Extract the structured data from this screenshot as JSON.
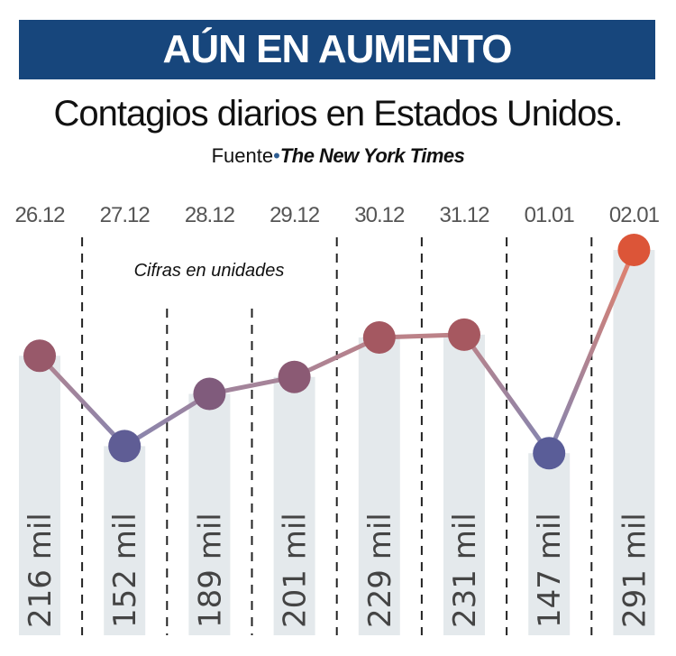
{
  "header": {
    "title": "AÚN EN AUMENTO"
  },
  "subtitle": "Contagios diarios en Estados Unidos.",
  "source": {
    "label": "Fuente",
    "separator": "•",
    "name": "The New York Times"
  },
  "chart_data": {
    "type": "line",
    "title": "Contagios diarios en Estados Unidos.",
    "note": "Cifras en unidades",
    "categories": [
      "26.12",
      "27.12",
      "28.12",
      "29.12",
      "30.12",
      "31.12",
      "01.01",
      "02.01"
    ],
    "values": [
      216,
      152,
      189,
      201,
      229,
      231,
      147,
      291
    ],
    "value_labels": [
      "216 mil",
      "152 mil",
      "189 mil",
      "201 mil",
      "229 mil",
      "231 mil",
      "147 mil",
      "291 mil"
    ],
    "unit": "mil",
    "ylim": [
      18,
      291
    ],
    "grid": false,
    "colors": {
      "low": "#5a5d98",
      "high": "#dc5538",
      "bar": "#e4e9ec",
      "banner": "#17467c"
    }
  }
}
